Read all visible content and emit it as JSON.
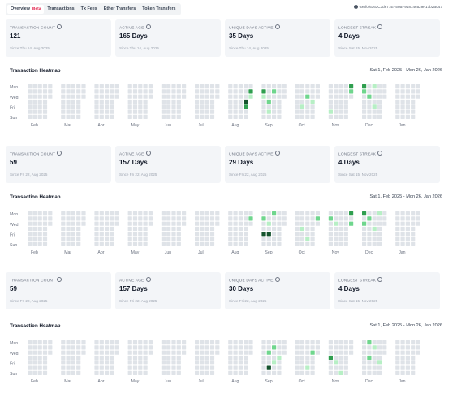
{
  "tabs": [
    {
      "label": "Overview",
      "badge": "Beta",
      "active": true
    },
    {
      "label": "Transactions"
    },
    {
      "label": "Tx Fees"
    },
    {
      "label": "Ether Transfers"
    },
    {
      "label": "Token Transfers"
    }
  ],
  "wallet": {
    "address": "0x6f0f6363C3d677EF59BF918146529F17b2Bd47"
  },
  "heatmap_common": {
    "weekdays": [
      "Mon",
      "Wed",
      "Fri",
      "Sun"
    ],
    "months": [
      "Feb",
      "Mar",
      "Apr",
      "May",
      "Jun",
      "Jul",
      "Aug",
      "Sep",
      "Oct",
      "Nov",
      "Dec",
      "Jan"
    ],
    "colors": {
      "empty": "#dfe3e8",
      "light": "#b7efc5",
      "mid": "#6fd68d",
      "dark": "#2f9e4f",
      "darkest": "#14532d"
    }
  },
  "panels": [
    {
      "stats": [
        {
          "label": "TRANSACTION COUNT",
          "value": "121",
          "sub": "Since Thu 14, Aug 2025"
        },
        {
          "label": "ACTIVE AGE",
          "value": "165 Days",
          "sub": "Since Thu 14, Aug 2025"
        },
        {
          "label": "UNIQUE DAYS ACTIVE",
          "value": "35 Days",
          "sub": "Since Thu 14, Aug 2025"
        },
        {
          "label": "LONGEST STREAK",
          "value": "4 Days",
          "sub": "Since Sat 15, Nov 2025"
        }
      ],
      "heatmap_title": "Transaction Heatmap",
      "range": "Sat 1, Feb 2025 - Mon 26, Jan 2026",
      "active_days": [
        {
          "week": 27,
          "day": 3,
          "level": 4
        },
        {
          "week": 27,
          "day": 4,
          "level": 3
        },
        {
          "week": 28,
          "day": 1,
          "level": 3
        },
        {
          "week": 28,
          "day": 2,
          "level": 1
        },
        {
          "week": 29,
          "day": 3,
          "level": 2
        },
        {
          "week": 29,
          "day": 5,
          "level": 1
        },
        {
          "week": 30,
          "day": 1,
          "level": 2
        },
        {
          "week": 33,
          "day": 4,
          "level": 1
        },
        {
          "week": 34,
          "day": 2,
          "level": 2
        },
        {
          "week": 35,
          "day": 3,
          "level": 1
        },
        {
          "week": 36,
          "day": 5,
          "level": 1
        },
        {
          "week": 40,
          "day": 0,
          "level": 3
        },
        {
          "week": 40,
          "day": 1,
          "level": 2
        },
        {
          "week": 41,
          "day": 2,
          "level": 2
        },
        {
          "week": 42,
          "day": 0,
          "level": 1
        },
        {
          "week": 42,
          "day": 4,
          "level": 1
        }
      ]
    },
    {
      "stats": [
        {
          "label": "TRANSACTION COUNT",
          "value": "59",
          "sub": "Since Fri 22, Aug 2025"
        },
        {
          "label": "ACTIVE AGE",
          "value": "157 Days",
          "sub": "Since Fri 22, Aug 2025"
        },
        {
          "label": "UNIQUE DAYS ACTIVE",
          "value": "29 Days",
          "sub": "Since Fri 22, Aug 2025"
        },
        {
          "label": "LONGEST STREAK",
          "value": "4 Days",
          "sub": "Since Sat 15, Nov 2025"
        }
      ],
      "heatmap_title": "Transaction Heatmap",
      "range": "Sat 1, Feb 2025 - Mon 26, Jan 2026",
      "active_days": [
        {
          "week": 28,
          "day": 1,
          "level": 2
        },
        {
          "week": 28,
          "day": 4,
          "level": 4
        },
        {
          "week": 29,
          "day": 4,
          "level": 4
        },
        {
          "week": 29,
          "day": 2,
          "level": 1
        },
        {
          "week": 30,
          "day": 0,
          "level": 2
        },
        {
          "week": 33,
          "day": 3,
          "level": 1
        },
        {
          "week": 34,
          "day": 5,
          "level": 1
        },
        {
          "week": 36,
          "day": 1,
          "level": 2
        },
        {
          "week": 37,
          "day": 2,
          "level": 1
        },
        {
          "week": 40,
          "day": 0,
          "level": 3
        },
        {
          "week": 40,
          "day": 2,
          "level": 2
        },
        {
          "week": 41,
          "day": 1,
          "level": 2
        },
        {
          "week": 42,
          "day": 3,
          "level": 1
        },
        {
          "week": 43,
          "day": 0,
          "level": 1
        }
      ]
    },
    {
      "stats": [
        {
          "label": "TRANSACTION COUNT",
          "value": "59",
          "sub": "Since Fri 22, Aug 2025"
        },
        {
          "label": "ACTIVE AGE",
          "value": "157 Days",
          "sub": "Since Fri 22, Aug 2025"
        },
        {
          "label": "UNIQUE DAYS ACTIVE",
          "value": "30 Days",
          "sub": "Since Fri 22, Aug 2025"
        },
        {
          "label": "LONGEST STREAK",
          "value": "4 Days",
          "sub": "Since Sat 15, Nov 2025"
        }
      ],
      "heatmap_title": "Transaction Heatmap",
      "range": "Sat 1, Feb 2025 - Mon 26, Jan 2026",
      "active_days": [
        {
          "week": 29,
          "day": 2,
          "level": 2
        },
        {
          "week": 29,
          "day": 5,
          "level": 4
        },
        {
          "week": 30,
          "day": 1,
          "level": 2
        },
        {
          "week": 30,
          "day": 4,
          "level": 1
        },
        {
          "week": 31,
          "day": 3,
          "level": 1
        },
        {
          "week": 34,
          "day": 5,
          "level": 1
        },
        {
          "week": 35,
          "day": 2,
          "level": 2
        },
        {
          "week": 36,
          "day": 3,
          "level": 3
        },
        {
          "week": 37,
          "day": 4,
          "level": 1
        },
        {
          "week": 38,
          "day": 6,
          "level": 1
        },
        {
          "week": 41,
          "day": 0,
          "level": 2
        },
        {
          "week": 41,
          "day": 3,
          "level": 2
        },
        {
          "week": 42,
          "day": 1,
          "level": 1
        },
        {
          "week": 43,
          "day": 4,
          "level": 1
        }
      ]
    }
  ]
}
